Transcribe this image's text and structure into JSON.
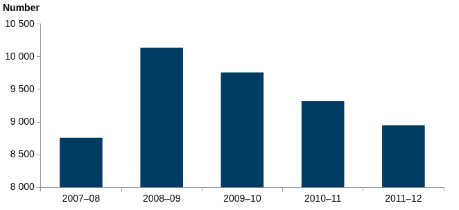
{
  "chart_data": {
    "type": "bar",
    "y_label": "Number",
    "categories": [
      "2007–08",
      "2008–09",
      "2009–10",
      "2010–11",
      "2011–12"
    ],
    "values": [
      8760,
      10140,
      9760,
      9320,
      8950
    ],
    "color": "#003b64",
    "ylim": [
      8000,
      10500
    ],
    "yticks": [
      {
        "value": 8000,
        "label": "8 000"
      },
      {
        "value": 8500,
        "label": "8 500"
      },
      {
        "value": 9000,
        "label": "9 000"
      },
      {
        "value": 9500,
        "label": "9 500"
      },
      {
        "value": 10000,
        "label": "10 000"
      },
      {
        "value": 10500,
        "label": "10 500"
      }
    ],
    "grid": false
  }
}
